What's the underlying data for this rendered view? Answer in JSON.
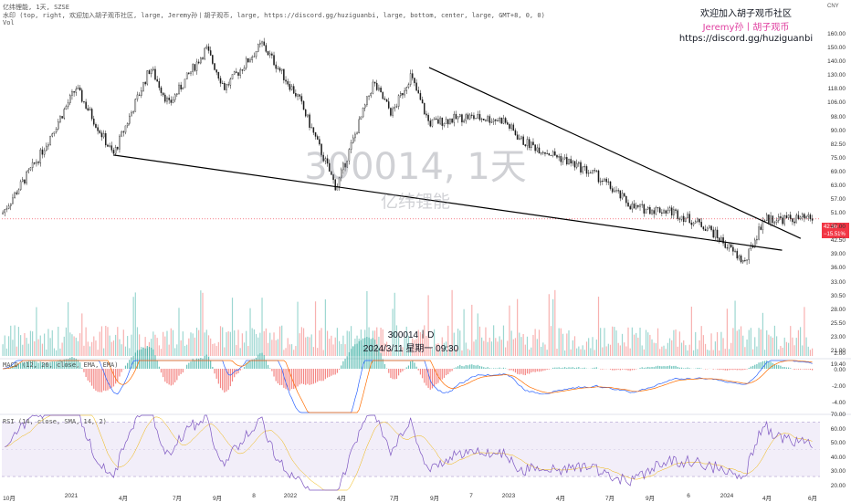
{
  "header": {
    "line1": "亿纬锂能, 1天, SZSE",
    "line2": "水印 (top, right, 欢迎加入胡子观币社区, large, Jeremy孙丨胡子观币, large, https://discord.gg/huziguanbi, large, bottom, center, large, GMT+8, 0, 0)",
    "line3": "Vol"
  },
  "watermark": {
    "line1": "欢迎加入胡子观币社区",
    "line2": "Jeremy孙丨胡子观币",
    "line3": "https://discord.gg/huziguanbi",
    "symbol": "300014, 1天",
    "name": "亿纬锂能",
    "bottom_line1": "300014丨D",
    "bottom_line2": "2024/3/11 星期一 09:30"
  },
  "currency": "CNY",
  "price_tag": {
    "price": "42.50",
    "change": "−15.51%"
  },
  "colors": {
    "up": "#26a69a",
    "down": "#ef5350",
    "macd": "#2962ff",
    "signal": "#ff6d00",
    "rsi": "#7e57c2",
    "trendline": "#000000",
    "tag": "#f23645"
  },
  "indicators": {
    "macd_label": "MACD (12, 26, close, EMA, EMA)",
    "rsi_label": "RSI (14, close, SMA, 14, 2)"
  },
  "chart_data": {
    "type": "candlestick",
    "title": "300014, 1天",
    "y_scale": "log",
    "ylim": [
      28.0,
      160.0
    ],
    "price_ticks": [
      "160.00",
      "150.00",
      "140.00",
      "130.00",
      "118.00",
      "106.00",
      "98.00",
      "90.00",
      "82.50",
      "75.00",
      "69.00",
      "63.00",
      "57.00",
      "51.00",
      "47.00",
      "42.50",
      "39.00",
      "36.00",
      "33.00",
      "30.50",
      "28.00",
      "25.50",
      "23.00",
      "21.00",
      "19.40"
    ],
    "x_ticks": [
      "10月",
      "2021",
      "4月",
      "7月",
      "9月",
      "8",
      "2022",
      "4月",
      "7月",
      "9月",
      "7",
      "2023",
      "4月",
      "7月",
      "9月",
      "6",
      "2024",
      "4月",
      "6月"
    ],
    "price_path": [
      {
        "t": "2020-10",
        "p": 44
      },
      {
        "t": "2020-12",
        "p": 66
      },
      {
        "t": "2021-02",
        "p": 108
      },
      {
        "t": "2021-04",
        "p": 67
      },
      {
        "t": "2021-06",
        "p": 125
      },
      {
        "t": "2021-07",
        "p": 96
      },
      {
        "t": "2021-09",
        "p": 143
      },
      {
        "t": "2021-10",
        "p": 108
      },
      {
        "t": "2021-12",
        "p": 148
      },
      {
        "t": "2022-02",
        "p": 100
      },
      {
        "t": "2022-04",
        "p": 53
      },
      {
        "t": "2022-06",
        "p": 112
      },
      {
        "t": "2022-07",
        "p": 90
      },
      {
        "t": "2022-08",
        "p": 118
      },
      {
        "t": "2022-09",
        "p": 84
      },
      {
        "t": "2022-11",
        "p": 88
      },
      {
        "t": "2023-01",
        "p": 86
      },
      {
        "t": "2023-02",
        "p": 74
      },
      {
        "t": "2023-04",
        "p": 66
      },
      {
        "t": "2023-06",
        "p": 58
      },
      {
        "t": "2023-08",
        "p": 46
      },
      {
        "t": "2023-10",
        "p": 45
      },
      {
        "t": "2023-12",
        "p": 40
      },
      {
        "t": "2024-02",
        "p": 31
      },
      {
        "t": "2024-03",
        "p": 42.5
      }
    ],
    "trendlines": [
      {
        "name": "lower-support",
        "from": {
          "t": "2021-04",
          "p": 67
        },
        "to": {
          "t": "2024-04",
          "p": 34
        }
      },
      {
        "name": "upper-resistance",
        "from": {
          "t": "2022-09",
          "p": 125
        },
        "to": {
          "t": "2024-05",
          "p": 37
        }
      }
    ],
    "volume": {
      "shown": true
    },
    "macd": {
      "ylim": [
        -4.0,
        2.0
      ],
      "ticks": [
        "2.00",
        "0.00",
        "-2.00",
        "-4.00"
      ]
    },
    "rsi": {
      "ylim": [
        20,
        70
      ],
      "ticks": [
        "70.00",
        "60.00",
        "50.00",
        "40.00",
        "30.00",
        "20.00"
      ],
      "band": [
        30,
        70
      ]
    },
    "grid": false,
    "legend": "none"
  }
}
